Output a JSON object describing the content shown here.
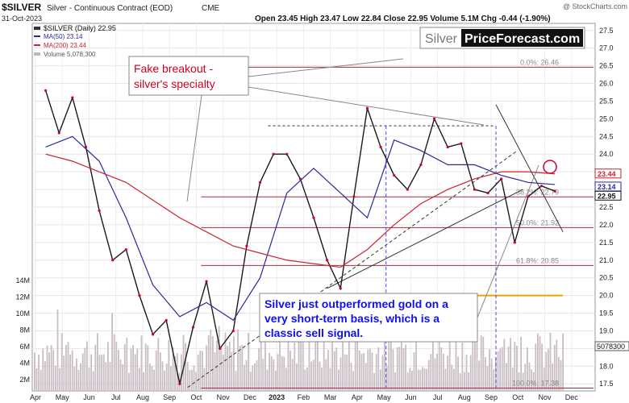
{
  "header": {
    "symbol": "$SILVER",
    "description": "Silver - Continuous Contract (EOD)",
    "exchange": "CME",
    "copyright": "@ StockCharts.com",
    "date": "31-Oct-2023",
    "ohlc": "Open 23.45  High 23.47  Low 22.84  Close 22.95  Volume 5.1M  Chg -0.44 (-1.90%)"
  },
  "legend": {
    "price": "$SILVER (Daily) 22.95",
    "ma50": "MA(50) 23.14",
    "ma200": "MA(200) 23.44",
    "volume": "Volume 5,078,300"
  },
  "colors": {
    "price": "#1a1a1a",
    "down": "#cc0033",
    "ma50": "#2a2a9c",
    "ma200": "#cc2233",
    "fib": "#a0303a",
    "volume": "#c8bec4",
    "support": "#f0a000",
    "annotation_red": "#cc0022",
    "annotation_blue": "#1010ee"
  },
  "watermark": {
    "part1": "Silver",
    "part2": "PriceForecast.com"
  },
  "annotations": {
    "fake_breakout": "Fake breakout -\nsilver's specialty",
    "outperform": "Silver just outperformed gold on a\nvery short-term basis, which is a\nclassic sell signal."
  },
  "fib_labels": [
    {
      "text": "0.0%: 26.46",
      "value": 26.46
    },
    {
      "text": "38.2%: 22.79",
      "value": 22.79
    },
    {
      "text": "50.0%: 21.92",
      "value": 21.92
    },
    {
      "text": "61.8%: 20.85",
      "value": 20.85
    },
    {
      "text": "100.0%: 17.38",
      "value": 17.38
    }
  ],
  "right_badges": [
    {
      "text": "23.44",
      "value": 23.44,
      "kind": "ma200"
    },
    {
      "text": "23.14",
      "value": 23.14,
      "kind": "ma50"
    },
    {
      "text": "22.95",
      "value": 22.95,
      "kind": "price"
    }
  ],
  "volume_badge": "5078300",
  "chart_data": {
    "type": "line",
    "x_labels": [
      "Apr",
      "May",
      "Jun",
      "Jul",
      "Aug",
      "Sep",
      "Oct",
      "Nov",
      "Dec",
      "2023",
      "Feb",
      "Mar",
      "Apr",
      "May",
      "Jun",
      "Jul",
      "Aug",
      "Sep",
      "Oct",
      "Nov",
      "Dec"
    ],
    "y_price_ticks": [
      17.5,
      18.0,
      18.5,
      19.0,
      19.5,
      20.0,
      20.5,
      21.0,
      21.5,
      22.0,
      22.5,
      23.0,
      23.5,
      24.0,
      24.5,
      25.0,
      25.5,
      26.0,
      26.5,
      27.0,
      27.5
    ],
    "y_price_range": [
      17.3,
      27.7
    ],
    "y_volume_ticks": [
      "2M",
      "4M",
      "6M",
      "8M",
      "10M",
      "12M",
      "14M"
    ],
    "support_level": 20.0,
    "series": [
      {
        "name": "$SILVER (Daily) 22.95",
        "x": [
          0,
          0.5,
          1,
          1.5,
          2,
          2.5,
          3,
          3.5,
          4,
          4.5,
          5,
          5.5,
          6,
          6.5,
          7,
          7.5,
          8,
          8.5,
          9,
          9.5,
          10,
          10.5,
          11,
          11.5,
          12,
          12.5,
          13,
          13.5,
          14,
          14.5,
          15,
          15.5,
          16,
          16.5,
          17,
          17.5,
          18,
          18.5,
          19
        ],
        "values": [
          25.8,
          24.6,
          25.6,
          24.2,
          22.4,
          21.0,
          21.3,
          20.0,
          18.9,
          19.3,
          17.5,
          19.1,
          20.4,
          18.5,
          19.0,
          21.4,
          23.2,
          24.0,
          24.0,
          23.3,
          22.2,
          21.0,
          20.2,
          22.8,
          25.3,
          24.2,
          23.4,
          23.0,
          23.7,
          25.0,
          24.2,
          24.3,
          23.0,
          22.9,
          23.3,
          21.5,
          22.8,
          23.1,
          22.95
        ]
      },
      {
        "name": "MA(50) 23.14",
        "x": [
          0,
          1,
          2,
          3,
          4,
          5,
          6,
          7,
          8,
          9,
          10,
          11,
          12,
          13,
          14,
          15,
          16,
          17,
          18,
          19
        ],
        "values": [
          24.2,
          24.5,
          23.8,
          22.2,
          20.3,
          19.4,
          19.8,
          19.3,
          20.5,
          22.9,
          23.6,
          22.9,
          22.2,
          24.4,
          24.1,
          23.7,
          23.7,
          23.4,
          23.2,
          23.14
        ]
      },
      {
        "name": "MA(200) 23.44",
        "x": [
          0,
          1,
          2,
          3,
          4,
          5,
          6,
          7,
          8,
          9,
          10,
          11,
          12,
          13,
          14,
          15,
          16,
          17,
          18,
          19
        ],
        "values": [
          24.0,
          23.8,
          23.5,
          23.2,
          22.7,
          22.2,
          21.8,
          21.4,
          21.2,
          21.0,
          20.9,
          20.8,
          21.3,
          22.0,
          22.6,
          23.0,
          23.3,
          23.5,
          23.5,
          23.44
        ]
      }
    ]
  }
}
